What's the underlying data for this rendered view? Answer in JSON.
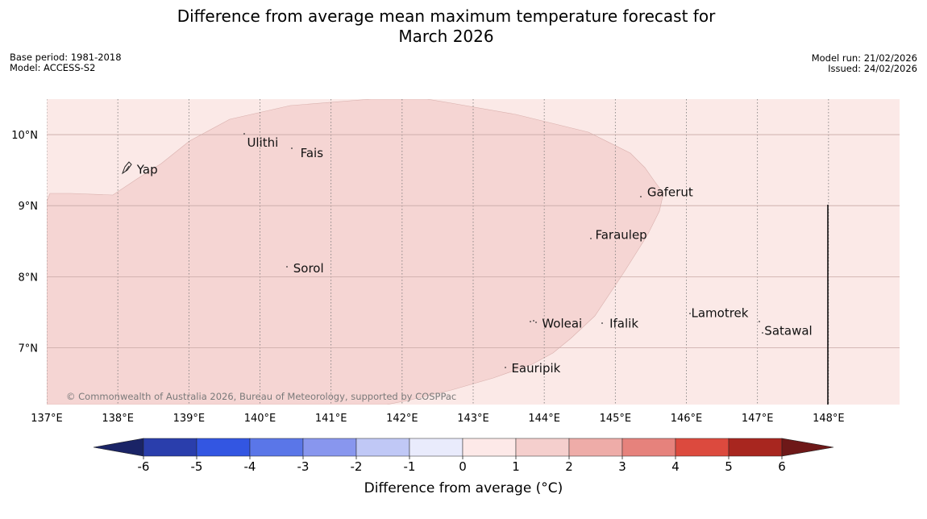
{
  "title": {
    "line1": "Difference from average mean maximum temperature forecast for",
    "line2": "March 2026"
  },
  "meta": {
    "base_period": "Base period: 1981-2018",
    "model": "Model: ACCESS-S2",
    "model_run": "Model run: 21/02/2026",
    "issued": "Issued: 24/02/2026"
  },
  "map": {
    "lon_range": [
      137,
      149
    ],
    "lat_range": [
      6.2,
      10.5
    ],
    "background_color": "#fbe9e7",
    "anomaly_region_color": "#f5d5d3",
    "lon_ticks": [
      {
        "value": 137,
        "label": "137°E"
      },
      {
        "value": 138,
        "label": "138°E"
      },
      {
        "value": 139,
        "label": "139°E"
      },
      {
        "value": 140,
        "label": "140°E"
      },
      {
        "value": 141,
        "label": "141°E"
      },
      {
        "value": 142,
        "label": "142°E"
      },
      {
        "value": 143,
        "label": "143°E"
      },
      {
        "value": 144,
        "label": "144°E"
      },
      {
        "value": 145,
        "label": "145°E"
      },
      {
        "value": 146,
        "label": "146°E"
      },
      {
        "value": 147,
        "label": "147°E"
      },
      {
        "value": 148,
        "label": "148°E"
      }
    ],
    "lat_ticks": [
      {
        "value": 10,
        "label": "10°N"
      },
      {
        "value": 9,
        "label": "9°N"
      },
      {
        "value": 8,
        "label": "8°N"
      },
      {
        "value": 7,
        "label": "7°N"
      }
    ],
    "places": [
      {
        "name": "Yap",
        "lon": 138.2,
        "lat": 9.52
      },
      {
        "name": "Ulithi",
        "lon": 139.75,
        "lat": 9.9
      },
      {
        "name": "Fais",
        "lon": 140.5,
        "lat": 9.75
      },
      {
        "name": "Gaferut",
        "lon": 145.38,
        "lat": 9.2
      },
      {
        "name": "Faraulep",
        "lon": 144.65,
        "lat": 8.6
      },
      {
        "name": "Sorol",
        "lon": 140.4,
        "lat": 8.13
      },
      {
        "name": "Woleai",
        "lon": 143.9,
        "lat": 7.35
      },
      {
        "name": "Ifalik",
        "lon": 144.85,
        "lat": 7.35
      },
      {
        "name": "Lamotrek",
        "lon": 146.0,
        "lat": 7.5
      },
      {
        "name": "Satawal",
        "lon": 147.03,
        "lat": 7.25
      },
      {
        "name": "Eauripik",
        "lon": 143.47,
        "lat": 6.72
      }
    ],
    "copyright": "© Commonwealth of Australia 2026, Bureau of Meteorology, supported by COSPPac"
  },
  "colorbar": {
    "label": "Difference from average (°C)",
    "ticks": [
      "-6",
      "-5",
      "-4",
      "-3",
      "-2",
      "-1",
      "0",
      "1",
      "2",
      "3",
      "4",
      "5",
      "6"
    ],
    "under_color": "#1a2466",
    "over_color": "#6e1818",
    "colors": [
      "#2a3eac",
      "#3356e2",
      "#5a76e8",
      "#8896ee",
      "#c0c8f6",
      "#e9ebfc",
      "#fde9e8",
      "#f5cfcd",
      "#eeaca8",
      "#e6827c",
      "#dc4a3e",
      "#a8261f"
    ]
  }
}
